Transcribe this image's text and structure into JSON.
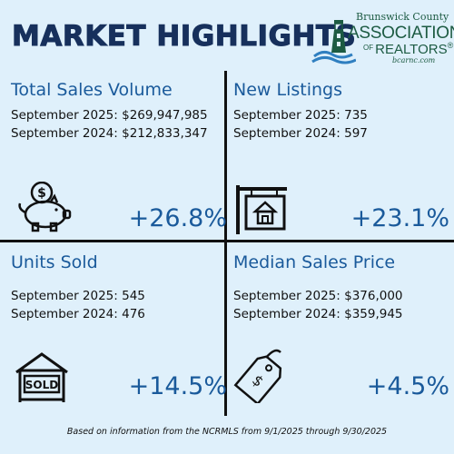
{
  "header": {
    "title": "MARKET HIGHLIGHTS",
    "logo": {
      "county": "Brunswick County",
      "association": "ASSOCIATION",
      "of": "OF",
      "realtors": "REALTORS",
      "registered": "®",
      "url": "bcarnc.com"
    }
  },
  "panels": {
    "total_sales": {
      "title": "Total Sales Volume",
      "current": "September 2025: $269,947,985",
      "previous": "September 2024: $212,833,347",
      "change": "+26.8%",
      "icon": "piggy-bank-icon"
    },
    "new_listings": {
      "title": "New Listings",
      "current": "September 2025: 735",
      "previous": "September 2024: 597",
      "change": "+23.1%",
      "icon": "house-sign-icon"
    },
    "units_sold": {
      "title": "Units Sold",
      "current": "September 2025: 545",
      "previous": "September 2024: 476",
      "change": "+14.5%",
      "icon": "sold-sign-icon"
    },
    "median_price": {
      "title": "Median Sales Price",
      "current": "September 2025: $376,000",
      "previous": "September 2024: $359,945",
      "change": "+4.5%",
      "icon": "price-tag-icon"
    }
  },
  "footer": {
    "note": "Based on information from the NCRMLS from 9/1/2025 through 9/30/2025"
  },
  "colors": {
    "background": "#dff0fb",
    "title": "#17305c",
    "accent": "#1a5a9b",
    "logo": "#1d5b43"
  }
}
